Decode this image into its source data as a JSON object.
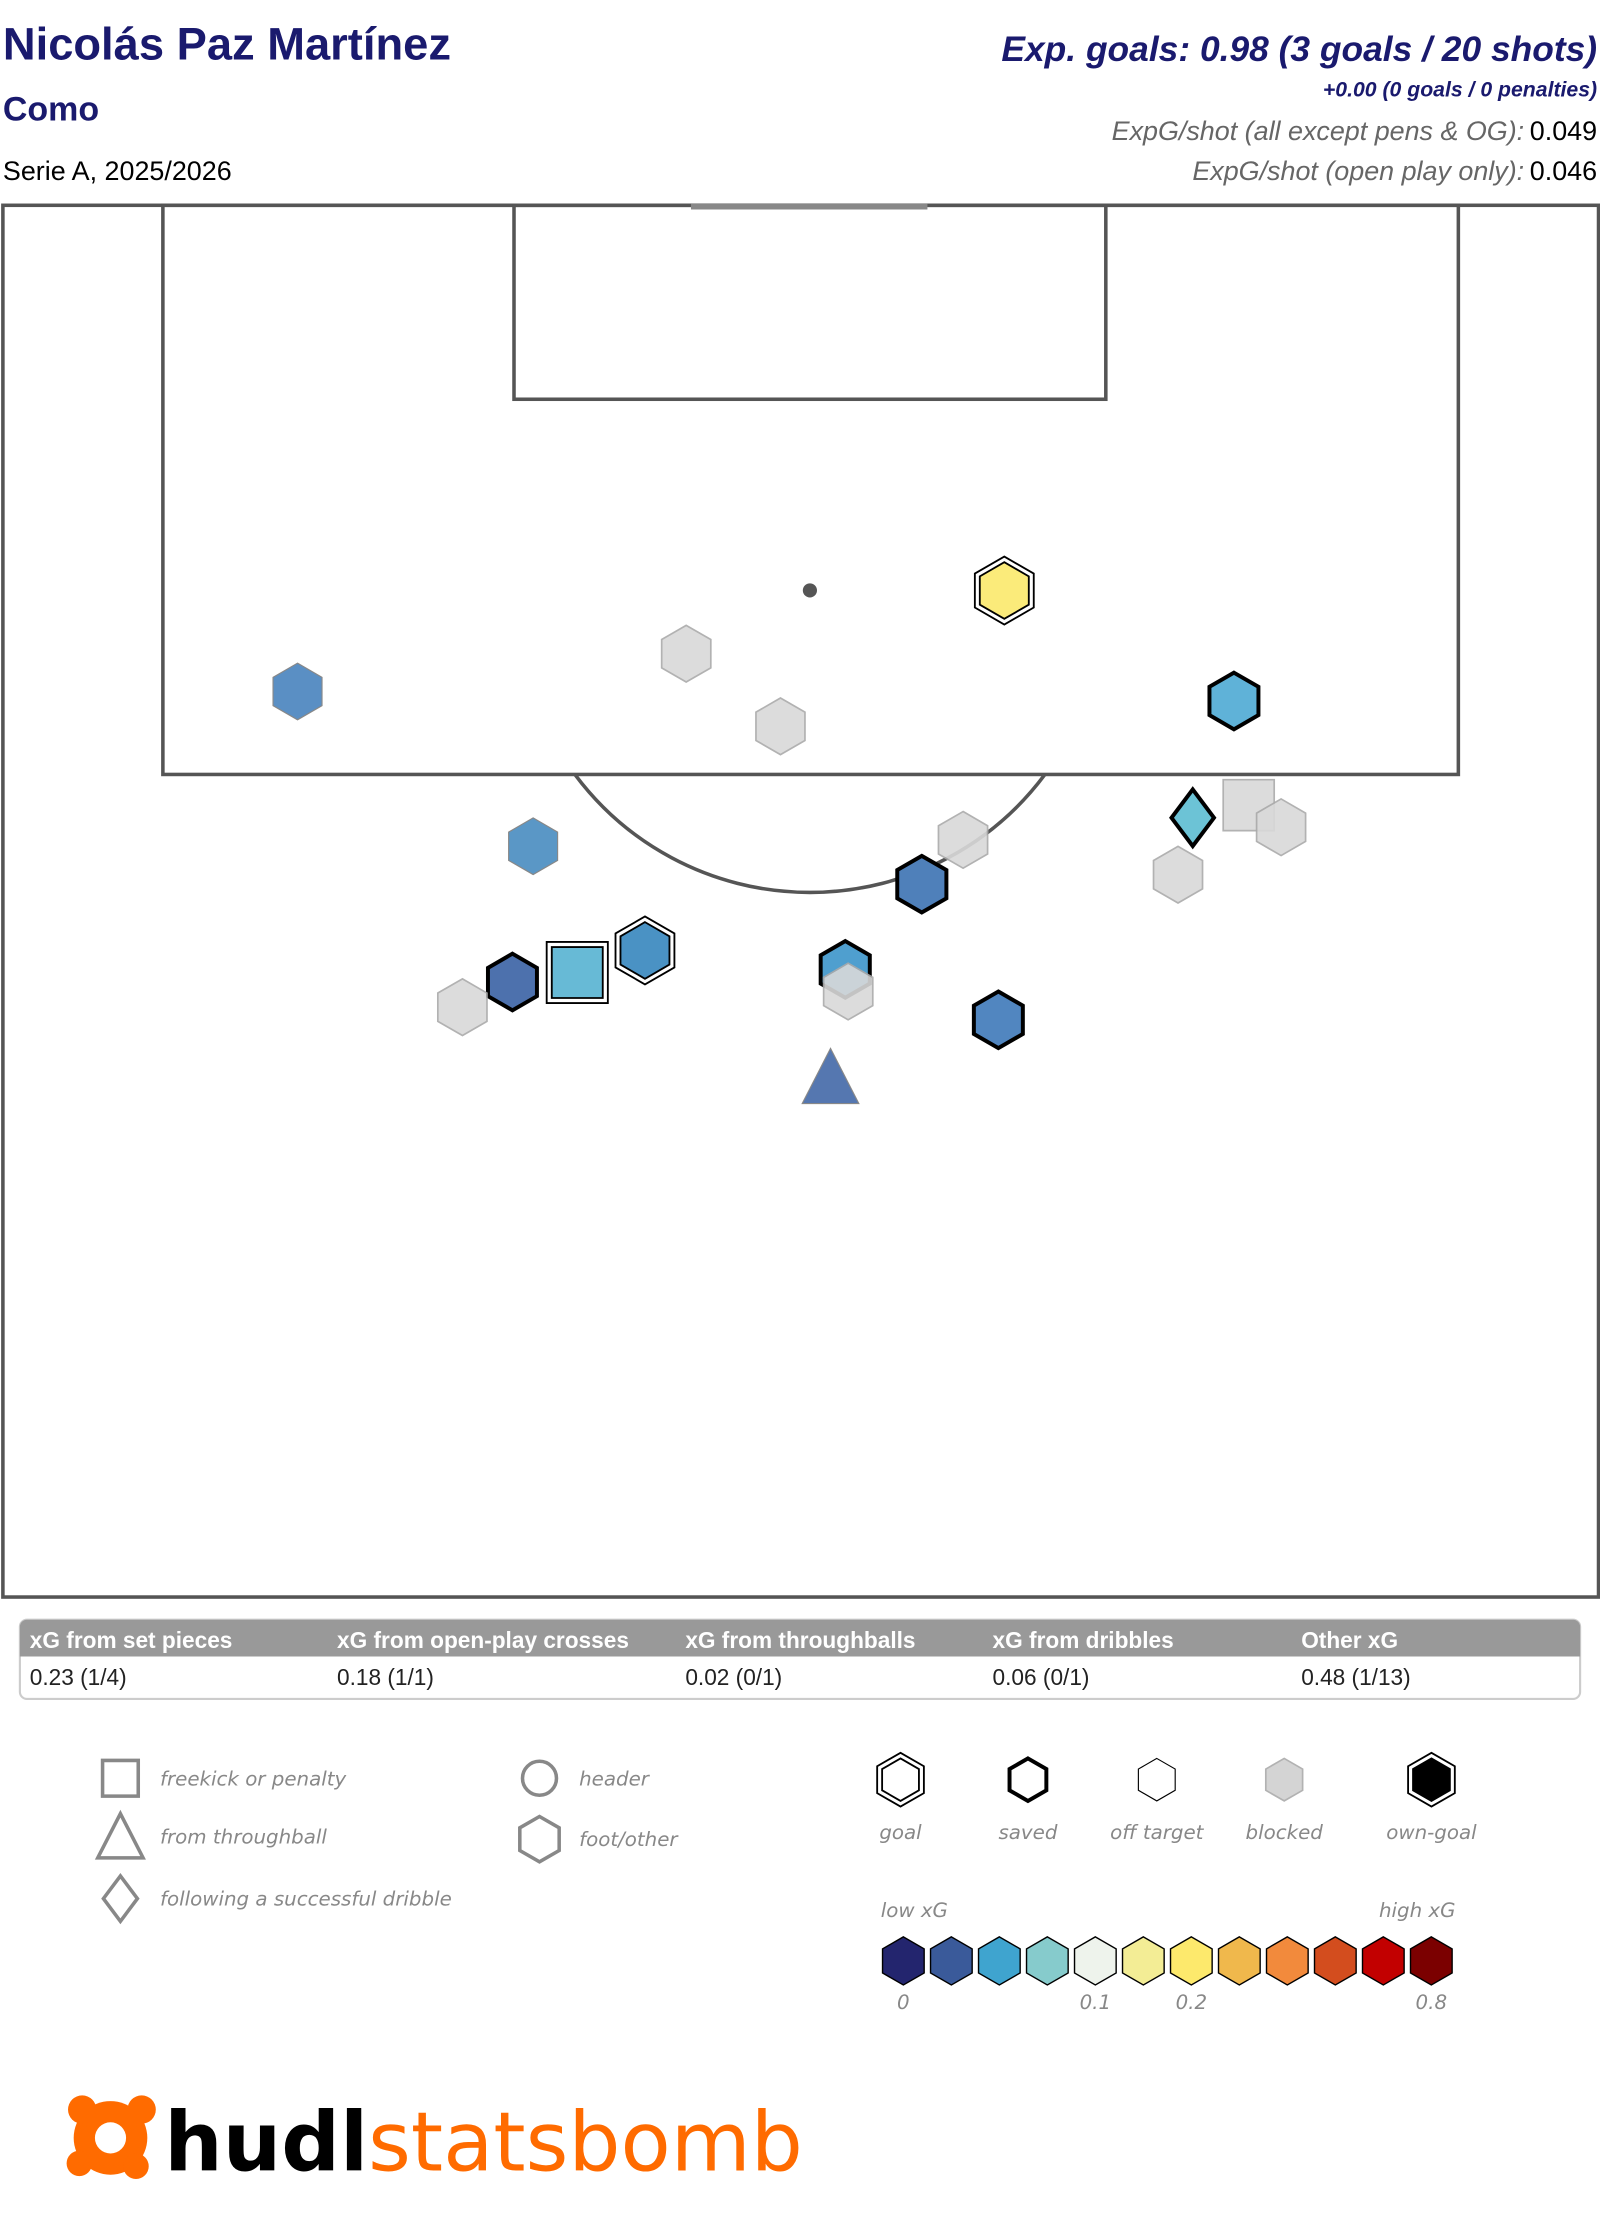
{
  "header": {
    "player": "Nicolás Paz Martínez",
    "team": "Como",
    "competition": "Serie A, 2025/2026",
    "exp_goals": "Exp. goals: 0.98 (3 goals / 20 shots)",
    "penalties": "+0.00 (0 goals / 0 penalties)",
    "xg_per_shot_label": "ExpG/shot (all except pens & OG):",
    "xg_per_shot_value": "0.049",
    "xg_open_play_label": "ExpG/shot (open play only):",
    "xg_open_play_value": "0.046"
  },
  "chart_data": {
    "type": "scatter",
    "coordinate_system": "pitch (length 0-120 toward goal, width 0-80)",
    "shots": [
      {
        "x": 104.6,
        "y": 22.6,
        "xg": 0.05,
        "shape": "hexagon",
        "outcome": "off target",
        "color": "#5a8fc4"
      },
      {
        "x": 105.8,
        "y": 35.8,
        "xg": 0.04,
        "shape": "hexagon",
        "outcome": "blocked",
        "color": "#d9d9d9"
      },
      {
        "x": 103.5,
        "y": 39.0,
        "xg": 0.05,
        "shape": "hexagon",
        "outcome": "blocked",
        "color": "#d9d9d9"
      },
      {
        "x": 107.8,
        "y": 46.6,
        "xg": 0.18,
        "shape": "hexagon",
        "outcome": "goal",
        "color": "#fbeb7a"
      },
      {
        "x": 104.3,
        "y": 54.4,
        "xg": 0.07,
        "shape": "hexagon",
        "outcome": "saved",
        "color": "#5fb2d8"
      },
      {
        "x": 99.7,
        "y": 30.6,
        "xg": 0.05,
        "shape": "hexagon",
        "outcome": "off target",
        "color": "#5a97c6"
      },
      {
        "x": 100.6,
        "y": 53.0,
        "xg": 0.06,
        "shape": "diamond",
        "outcome": "saved",
        "color": "#6cc3d6"
      },
      {
        "x": 101.0,
        "y": 54.9,
        "xg": 0.03,
        "shape": "square",
        "outcome": "blocked",
        "color": "#d9d9d9"
      },
      {
        "x": 100.3,
        "y": 56.0,
        "xg": 0.03,
        "shape": "hexagon",
        "outcome": "blocked",
        "color": "#d9d9d9"
      },
      {
        "x": 99.9,
        "y": 45.2,
        "xg": 0.04,
        "shape": "hexagon",
        "outcome": "blocked",
        "color": "#d9d9d9"
      },
      {
        "x": 98.8,
        "y": 52.5,
        "xg": 0.03,
        "shape": "hexagon",
        "outcome": "blocked",
        "color": "#d9d9d9"
      },
      {
        "x": 98.5,
        "y": 43.8,
        "xg": 0.04,
        "shape": "hexagon",
        "outcome": "saved",
        "color": "#4f80ba"
      },
      {
        "x": 96.4,
        "y": 34.4,
        "xg": 0.05,
        "shape": "hexagon",
        "outcome": "goal",
        "color": "#4a92c4"
      },
      {
        "x": 95.7,
        "y": 32.1,
        "xg": 0.07,
        "shape": "square",
        "outcome": "goal",
        "color": "#67bad6"
      },
      {
        "x": 95.4,
        "y": 29.9,
        "xg": 0.03,
        "shape": "hexagon",
        "outcome": "saved",
        "color": "#4d71ad"
      },
      {
        "x": 94.6,
        "y": 28.2,
        "xg": 0.02,
        "shape": "hexagon",
        "outcome": "blocked",
        "color": "#d9d9d9"
      },
      {
        "x": 95.8,
        "y": 41.2,
        "xg": 0.05,
        "shape": "hexagon",
        "outcome": "saved",
        "color": "#4f9fcf"
      },
      {
        "x": 95.1,
        "y": 41.3,
        "xg": 0.03,
        "shape": "hexagon",
        "outcome": "blocked",
        "color": "#d9d9d9"
      },
      {
        "x": 94.2,
        "y": 46.4,
        "xg": 0.04,
        "shape": "hexagon",
        "outcome": "saved",
        "color": "#5186c0"
      },
      {
        "x": 92.4,
        "y": 40.7,
        "xg": 0.02,
        "shape": "triangle",
        "outcome": "off target",
        "color": "#5577b0"
      }
    ]
  },
  "summary_table": {
    "headers": [
      "xG from set pieces",
      "xG from open-play crosses",
      "xG from throughballs",
      "xG from dribbles",
      "Other xG"
    ],
    "values": [
      "0.23 (1/4)",
      "0.18 (1/1)",
      "0.02 (0/1)",
      "0.06 (0/1)",
      "0.48 (1/13)"
    ]
  },
  "legend": {
    "shapes": [
      {
        "icon": "square-icon",
        "label": "freekick or penalty"
      },
      {
        "icon": "triangle-icon",
        "label": "from throughball"
      },
      {
        "icon": "diamond-icon",
        "label": "following a successful dribble"
      },
      {
        "icon": "circle-icon",
        "label": "header"
      },
      {
        "icon": "hexagon-icon",
        "label": "foot/other"
      }
    ],
    "outcomes": [
      "goal",
      "saved",
      "off target",
      "blocked",
      "own-goal"
    ],
    "scale_low": "low xG",
    "scale_high": "high xG",
    "scale_colors": [
      "#23256e",
      "#3a5a9a",
      "#3fa4cf",
      "#86cbcc",
      "#eef3ec",
      "#f3ed95",
      "#fde96c",
      "#f0b84c",
      "#f28a3c",
      "#d34d1e",
      "#c20000",
      "#7b0000"
    ],
    "scale_ticks": [
      "0",
      "0.1",
      "0.2",
      "0.8"
    ]
  },
  "logo": {
    "part1": "hudl",
    "part2": "statsbomb",
    "color": "#ff6b00"
  },
  "colors": {
    "title": "#1a1a6e",
    "header_bg": "#999999",
    "pitch_line": "#555555"
  }
}
